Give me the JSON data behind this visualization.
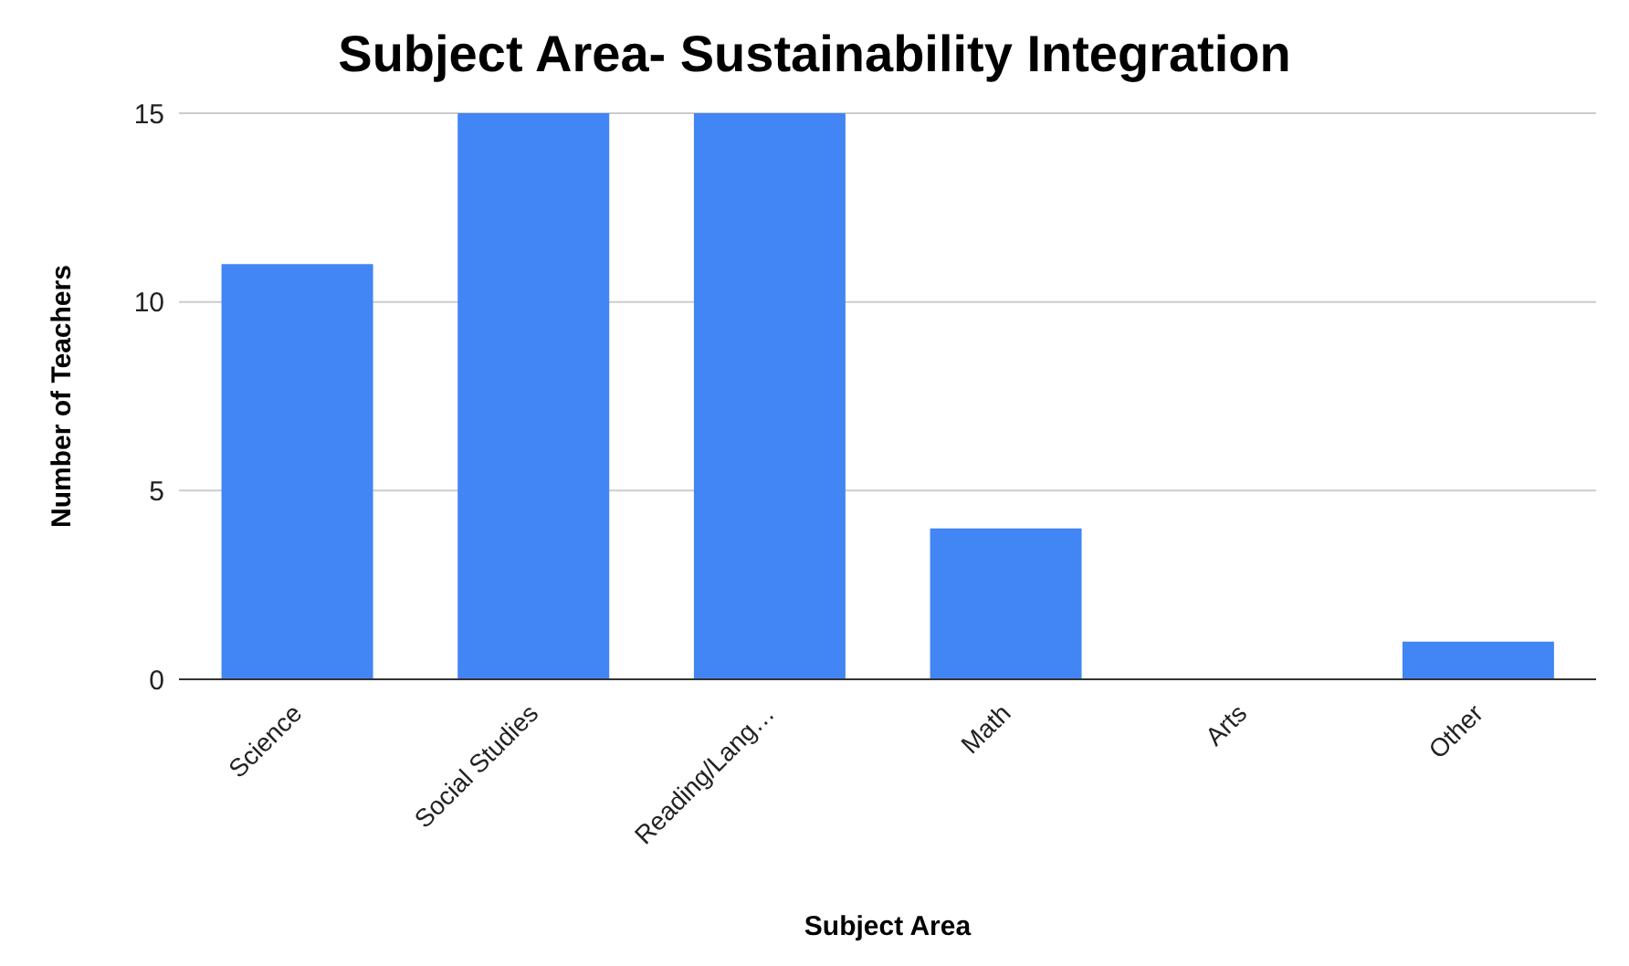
{
  "chart_data": {
    "type": "bar",
    "title": "Subject Area- Sustainability Integration",
    "xlabel": "Subject Area",
    "ylabel": "Number of Teachers",
    "categories": [
      "Science",
      "Social Studies",
      "Reading/Lang…",
      "Math",
      "Arts",
      "Other"
    ],
    "values": [
      11,
      15,
      15,
      4,
      0,
      1
    ],
    "color": "#4285f4",
    "ylim": [
      0,
      15
    ],
    "yticks": [
      0,
      5,
      10,
      15
    ],
    "grid": "y"
  }
}
